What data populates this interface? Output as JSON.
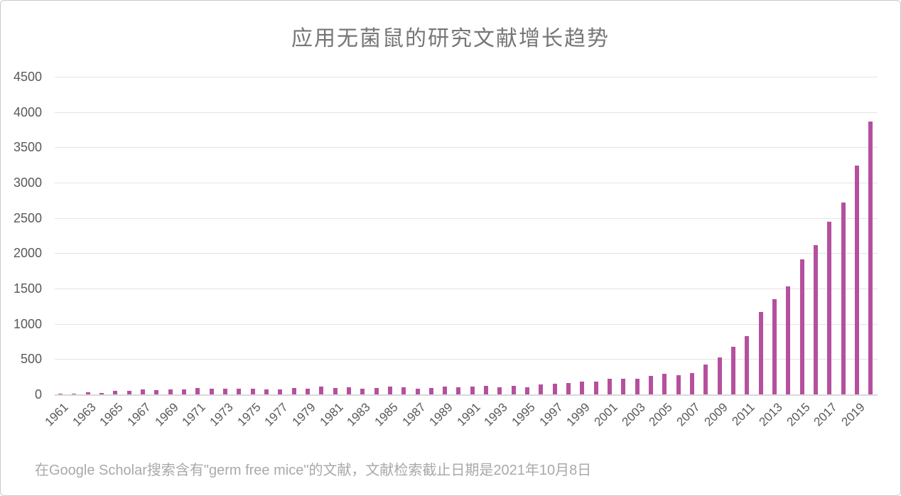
{
  "chart": {
    "title": "应用无菌鼠的研究文献增长趋势",
    "caption": "在Google Scholar搜索含有\"germ free mice\"的文献，文献检索截止日期是2021年10月8日"
  },
  "chart_data": {
    "type": "bar",
    "title": "应用无菌鼠的研究文献增长趋势",
    "xlabel": "",
    "ylabel": "",
    "categories": [
      1961,
      1962,
      1963,
      1964,
      1965,
      1966,
      1967,
      1968,
      1969,
      1970,
      1971,
      1972,
      1973,
      1974,
      1975,
      1976,
      1977,
      1978,
      1979,
      1980,
      1981,
      1982,
      1983,
      1984,
      1985,
      1986,
      1987,
      1988,
      1989,
      1990,
      1991,
      1992,
      1993,
      1994,
      1995,
      1996,
      1997,
      1998,
      1999,
      2000,
      2001,
      2002,
      2003,
      2004,
      2005,
      2006,
      2007,
      2008,
      2009,
      2010,
      2011,
      2012,
      2013,
      2014,
      2015,
      2016,
      2017,
      2018,
      2019,
      2020
    ],
    "values": [
      8,
      15,
      30,
      25,
      47,
      55,
      67,
      57,
      74,
      70,
      95,
      85,
      80,
      80,
      80,
      75,
      70,
      95,
      85,
      110,
      90,
      100,
      85,
      90,
      110,
      97,
      80,
      88,
      107,
      100,
      107,
      124,
      100,
      120,
      97,
      140,
      148,
      160,
      184,
      181,
      218,
      225,
      218,
      265,
      290,
      272,
      305,
      420,
      527,
      670,
      825,
      1165,
      1350,
      1530,
      1910,
      2115,
      2445,
      2715,
      3245,
      3865
    ],
    "xtick_labels": [
      1961,
      1963,
      1965,
      1967,
      1969,
      1971,
      1973,
      1975,
      1977,
      1979,
      1981,
      1983,
      1985,
      1987,
      1989,
      1991,
      1993,
      1995,
      1997,
      1999,
      2001,
      2003,
      2005,
      2007,
      2009,
      2011,
      2013,
      2015,
      2017,
      2019
    ],
    "ylim": [
      0,
      4500
    ],
    "ytick_step": 500,
    "grid": true,
    "legend": "none",
    "bar_color": "#b5509e",
    "annotation": "在Google Scholar搜索含有\"germ free mice\"的文献，文献检索截止日期是2021年10月8日"
  },
  "colors": {
    "bar": "#b5509e",
    "gridline": "#e4e4e4",
    "baseline": "#d8d8d8",
    "axis_text": "#595959",
    "title_text": "#767676",
    "caption_text": "#a9a9a9",
    "border": "#c9c9c9",
    "background": "#ffffff"
  }
}
